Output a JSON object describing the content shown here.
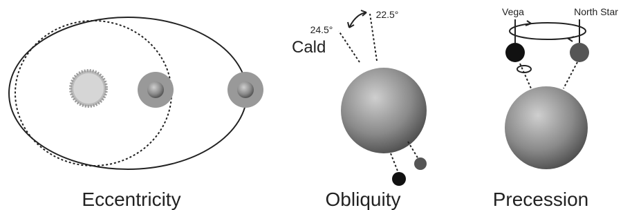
{
  "panels": [
    {
      "title": "Eccentricity"
    },
    {
      "title": "Obliquity",
      "annotations": [
        "24.5°",
        "22.5°",
        "Cald"
      ]
    },
    {
      "title": "Precession",
      "annotations": [
        "Vega",
        "North Star"
      ]
    }
  ]
}
